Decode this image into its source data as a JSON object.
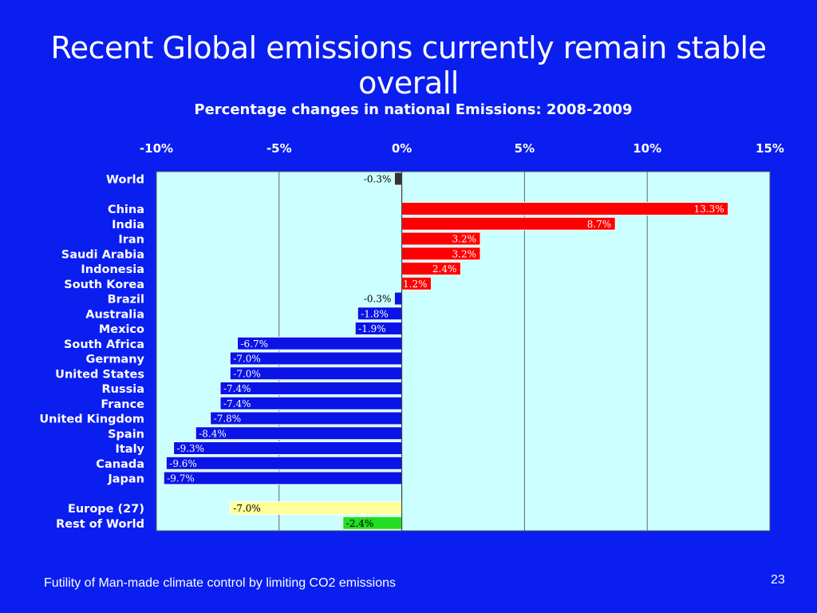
{
  "slide": {
    "title": "Recent Global emissions currently remain stable overall",
    "footer": "Futility of Man-made climate control by limiting CO2 emissions",
    "page_number": "23"
  },
  "chart_data": {
    "type": "bar",
    "orientation": "horizontal",
    "title": "Percentage changes in national Emissions:  2008-2009",
    "xlim": [
      -10,
      15
    ],
    "x_ticks": [
      -10,
      -5,
      0,
      5,
      10,
      15
    ],
    "x_tick_labels": [
      "-10%",
      "-5%",
      "0%",
      "5%",
      "10%",
      "15%"
    ],
    "x_axis_position": "top",
    "grid": true,
    "plot_background": "#ccffff",
    "categories": [
      "World",
      "China",
      "India",
      "Iran",
      "Saudi Arabia",
      "Indonesia",
      "South Korea",
      "Brazil",
      "Australia",
      "Mexico",
      "South Africa",
      "Germany",
      "United States",
      "Russia",
      "France",
      "United Kingdom",
      "Spain",
      "Italy",
      "Canada",
      "Japan",
      "Europe (27)",
      "Rest of World"
    ],
    "groups": [
      0,
      1,
      1,
      1,
      1,
      1,
      1,
      1,
      1,
      1,
      1,
      1,
      1,
      1,
      1,
      1,
      1,
      1,
      1,
      1,
      2,
      2
    ],
    "values": [
      -0.3,
      13.3,
      8.7,
      3.2,
      3.2,
      2.4,
      1.2,
      -0.3,
      -1.8,
      -1.9,
      -6.7,
      -7.0,
      -7.0,
      -7.4,
      -7.4,
      -7.8,
      -8.4,
      -9.3,
      -9.6,
      -9.7,
      -7.0,
      -2.4
    ],
    "value_labels": [
      "-0.3%",
      "13.3%",
      "8.7%",
      "3.2%",
      "3.2%",
      "2.4%",
      "1.2%",
      "-0.3%",
      "-1.8%",
      "-1.9%",
      "-6.7%",
      "-7.0%",
      "-7.0%",
      "-7.4%",
      "-7.4%",
      "-7.8%",
      "-8.4%",
      "-9.3%",
      "-9.6%",
      "-9.7%",
      "-7.0%",
      "-2.4%"
    ],
    "colors": [
      "#333333",
      "#ff0000",
      "#ff0000",
      "#ff0000",
      "#ff0000",
      "#ff0000",
      "#ff0000",
      "#0a14e6",
      "#0a14e6",
      "#0a14e6",
      "#0a14e6",
      "#0a14e6",
      "#0a14e6",
      "#0a14e6",
      "#0a14e6",
      "#0a14e6",
      "#0a14e6",
      "#0a14e6",
      "#0a14e6",
      "#0a14e6",
      "#ffff99",
      "#22dd22"
    ],
    "label_colors": [
      "#000000",
      "#ffffff",
      "#ffffff",
      "#ffffff",
      "#ffffff",
      "#ffffff",
      "#ffffff",
      "#000000",
      "#ffffff",
      "#ffffff",
      "#ffffff",
      "#ffffff",
      "#ffffff",
      "#ffffff",
      "#ffffff",
      "#ffffff",
      "#ffffff",
      "#ffffff",
      "#ffffff",
      "#ffffff",
      "#000000",
      "#000000"
    ]
  }
}
